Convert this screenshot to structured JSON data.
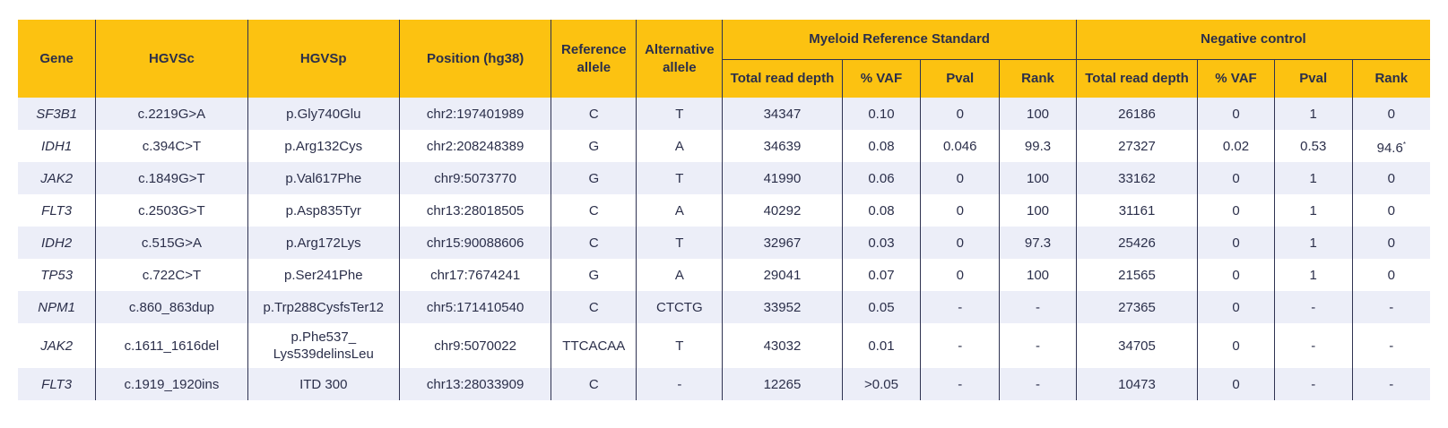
{
  "header": {
    "gene": "Gene",
    "hgvsc": "HGVSc",
    "hgvsp": "HGVSp",
    "position": "Position (hg38)",
    "reference_allele": "Reference allele",
    "alternative_allele": "Alternative allele",
    "group_myeloid": "Myeloid Reference Standard",
    "group_negative": "Negative control",
    "sub": {
      "total_read_depth": "Total read depth",
      "vaf": "% VAF",
      "pval": "Pval",
      "rank": "Rank"
    }
  },
  "footnote_marker": "*",
  "rows": [
    {
      "gene": "SF3B1",
      "hgvsc": "c.2219G>A",
      "hgvsp": "p.Gly740Glu",
      "position": "chr2:197401989",
      "ref": "C",
      "alt": "T",
      "m_depth": "34347",
      "m_vaf": "0.10",
      "m_pval": "0",
      "m_rank": "100",
      "n_depth": "26186",
      "n_vaf": "0",
      "n_pval": "1",
      "n_rank": "0"
    },
    {
      "gene": "IDH1",
      "hgvsc": "c.394C>T",
      "hgvsp": "p.Arg132Cys",
      "position": "chr2:208248389",
      "ref": "G",
      "alt": "A",
      "m_depth": "34639",
      "m_vaf": "0.08",
      "m_pval": "0.046",
      "m_rank": "99.3",
      "n_depth": "27327",
      "n_vaf": "0.02",
      "n_pval": "0.53",
      "n_rank": "94.6"
    },
    {
      "gene": "JAK2",
      "hgvsc": "c.1849G>T",
      "hgvsp": "p.Val617Phe",
      "position": "chr9:5073770",
      "ref": "G",
      "alt": "T",
      "m_depth": "41990",
      "m_vaf": "0.06",
      "m_pval": "0",
      "m_rank": "100",
      "n_depth": "33162",
      "n_vaf": "0",
      "n_pval": "1",
      "n_rank": "0"
    },
    {
      "gene": "FLT3",
      "hgvsc": "c.2503G>T",
      "hgvsp": "p.Asp835Tyr",
      "position": "chr13:28018505",
      "ref": "C",
      "alt": "A",
      "m_depth": "40292",
      "m_vaf": "0.08",
      "m_pval": "0",
      "m_rank": "100",
      "n_depth": "31161",
      "n_vaf": "0",
      "n_pval": "1",
      "n_rank": "0"
    },
    {
      "gene": "IDH2",
      "hgvsc": "c.515G>A",
      "hgvsp": "p.Arg172Lys",
      "position": "chr15:90088606",
      "ref": "C",
      "alt": "T",
      "m_depth": "32967",
      "m_vaf": "0.03",
      "m_pval": "0",
      "m_rank": "97.3",
      "n_depth": "25426",
      "n_vaf": "0",
      "n_pval": "1",
      "n_rank": "0"
    },
    {
      "gene": "TP53",
      "hgvsc": "c.722C>T",
      "hgvsp": "p.Ser241Phe",
      "position": "chr17:7674241",
      "ref": "G",
      "alt": "A",
      "m_depth": "29041",
      "m_vaf": "0.07",
      "m_pval": "0",
      "m_rank": "100",
      "n_depth": "21565",
      "n_vaf": "0",
      "n_pval": "1",
      "n_rank": "0"
    },
    {
      "gene": "NPM1",
      "hgvsc": "c.860_863dup",
      "hgvsp": "p.Trp288CysfsTer12",
      "position": "chr5:171410540",
      "ref": "C",
      "alt": "CTCTG",
      "m_depth": "33952",
      "m_vaf": "0.05",
      "m_pval": "-",
      "m_rank": "-",
      "n_depth": "27365",
      "n_vaf": "0",
      "n_pval": "-",
      "n_rank": "-"
    },
    {
      "gene": "JAK2",
      "hgvsc": "c.1611_1616del",
      "hgvsp": "p.Phe537_ Lys539delinsLeu",
      "position": "chr9:5070022",
      "ref": "TTCACAA",
      "alt": "T",
      "m_depth": "43032",
      "m_vaf": "0.01",
      "m_pval": "-",
      "m_rank": "-",
      "n_depth": "34705",
      "n_vaf": "0",
      "n_pval": "-",
      "n_rank": "-"
    },
    {
      "gene": "FLT3",
      "hgvsc": "c.1919_1920ins",
      "hgvsp": "ITD 300",
      "position": "chr13:28033909",
      "ref": "C",
      "alt": "-",
      "m_depth": "12265",
      "m_vaf": ">0.05",
      "m_pval": "-",
      "m_rank": "-",
      "n_depth": "10473",
      "n_vaf": "0",
      "n_pval": "-",
      "n_rank": "-"
    }
  ]
}
